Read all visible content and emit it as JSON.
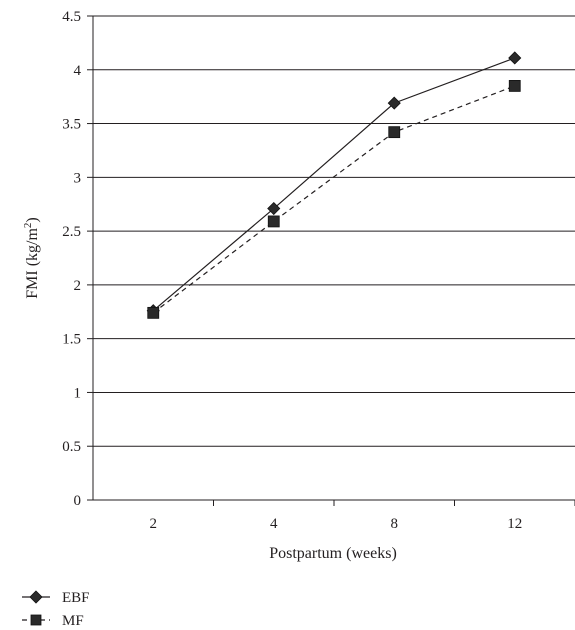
{
  "chart_data": {
    "type": "line",
    "title": "",
    "xlabel": "Postpartum (weeks)",
    "ylabel_parts": [
      "FMI (kg/m",
      "2",
      ")"
    ],
    "categories": [
      "2",
      "4",
      "8",
      "12"
    ],
    "ylim": [
      0,
      4.5
    ],
    "yticks": [
      "0",
      "0.5",
      "1",
      "1.5",
      "2",
      "2.5",
      "3",
      "3.5",
      "4",
      "4.5"
    ],
    "grid": true,
    "legend_position": "bottom-left",
    "series": [
      {
        "name": "EBF",
        "values": [
          1.76,
          2.71,
          3.69,
          4.11
        ],
        "marker": "diamond",
        "line": "solid",
        "color": "#231f20"
      },
      {
        "name": "MF",
        "values": [
          1.74,
          2.59,
          3.42,
          3.85
        ],
        "marker": "square",
        "line": "dashed",
        "color": "#231f20"
      }
    ]
  }
}
